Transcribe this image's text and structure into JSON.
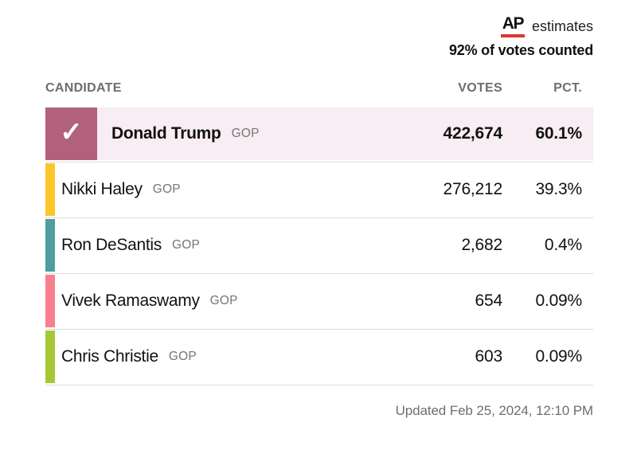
{
  "attribution": {
    "logo_text": "AP",
    "estimates_label": "estimates",
    "votes_counted_status": "92% of votes counted"
  },
  "table": {
    "columns": {
      "candidate": "CANDIDATE",
      "votes": "VOTES",
      "pct": "PCT."
    },
    "rows": [
      {
        "name": "Donald Trump",
        "party": "GOP",
        "votes": "422,674",
        "pct": "60.1%",
        "color": "#b2617d",
        "row_bg": "#f7edf2",
        "winner": true
      },
      {
        "name": "Nikki Haley",
        "party": "GOP",
        "votes": "276,212",
        "pct": "39.3%",
        "color": "#fac629",
        "winner": false
      },
      {
        "name": "Ron DeSantis",
        "party": "GOP",
        "votes": "2,682",
        "pct": "0.4%",
        "color": "#4f9da1",
        "winner": false
      },
      {
        "name": "Vivek Ramaswamy",
        "party": "GOP",
        "votes": "654",
        "pct": "0.09%",
        "color": "#f87f8d",
        "winner": false
      },
      {
        "name": "Chris Christie",
        "party": "GOP",
        "votes": "603",
        "pct": "0.09%",
        "color": "#a6c837",
        "winner": false
      }
    ]
  },
  "footer": {
    "updated": "Updated Feb 25, 2024, 12:10 PM"
  },
  "icons": {
    "winner_check": "✓"
  },
  "colors": {
    "ap_red": "#e0342f",
    "winner_row_bg": "#f7edf2",
    "divider": "#dcdcdc",
    "muted_text": "#6e6e6e"
  },
  "chart_data": {
    "type": "table",
    "title": "AP estimates — 92% of votes counted",
    "columns": [
      "CANDIDATE",
      "VOTES",
      "PCT."
    ],
    "rows": [
      {
        "candidate": "Donald Trump",
        "party": "GOP",
        "votes": 422674,
        "pct": 60.1,
        "winner": true
      },
      {
        "candidate": "Nikki Haley",
        "party": "GOP",
        "votes": 276212,
        "pct": 39.3,
        "winner": false
      },
      {
        "candidate": "Ron DeSantis",
        "party": "GOP",
        "votes": 2682,
        "pct": 0.4,
        "winner": false
      },
      {
        "candidate": "Vivek Ramaswamy",
        "party": "GOP",
        "votes": 654,
        "pct": 0.09,
        "winner": false
      },
      {
        "candidate": "Chris Christie",
        "party": "GOP",
        "votes": 603,
        "pct": 0.09,
        "winner": false
      }
    ],
    "annotations": [
      "Updated Feb 25, 2024, 12:10 PM"
    ],
    "legend_position": "none",
    "grid": "row-dividers"
  }
}
